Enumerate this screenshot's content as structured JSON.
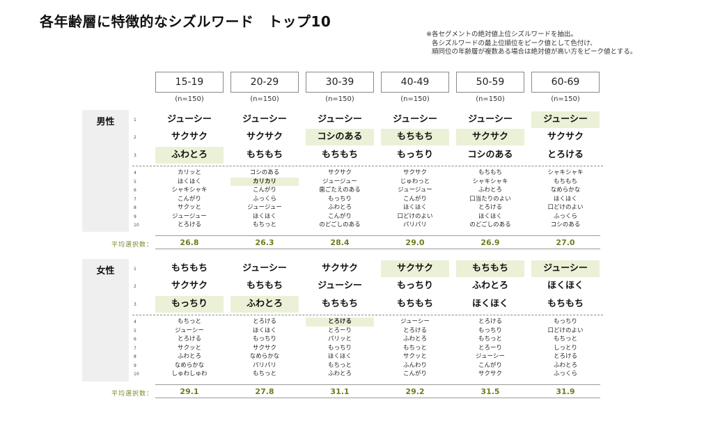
{
  "title": "各年齢層に特徴的なシズルワード　トップ10",
  "note": [
    "※各セグメントの絶対値上位シズルワードを抽出。",
    "各シズルワードの最上位順位をピーク値として色付け、",
    "順同位の年齢層が複数ある場合は絶対値が高い方をピーク値とする。"
  ],
  "age_groups": [
    {
      "label": "15-19",
      "n": "(n=150)"
    },
    {
      "label": "20-29",
      "n": "(n=150)"
    },
    {
      "label": "30-39",
      "n": "(n=150)"
    },
    {
      "label": "40-49",
      "n": "(n=150)"
    },
    {
      "label": "50-59",
      "n": "(n=150)"
    },
    {
      "label": "60-69",
      "n": "(n=150)"
    }
  ],
  "ranks": [
    "1",
    "2",
    "3",
    "4",
    "5",
    "6",
    "7",
    "8",
    "9",
    "10"
  ],
  "avg_label": "平均選択数：",
  "sections": [
    {
      "label": "男性",
      "columns": [
        {
          "words": [
            "ジューシー",
            "サクサク",
            "ふわとろ",
            "カリッと",
            "ほくほく",
            "シャキシャキ",
            "こんがり",
            "サクッと",
            "ジュージュー",
            "とろける"
          ],
          "highlight": [
            2
          ],
          "avg": "26.8"
        },
        {
          "words": [
            "ジューシー",
            "サクサク",
            "もちもち",
            "コシのある",
            "カリカリ",
            "こんがり",
            "ふっくら",
            "ジュージュー",
            "ほくほく",
            "もちっと"
          ],
          "highlight": [
            4
          ],
          "avg": "26.3"
        },
        {
          "words": [
            "ジューシー",
            "コシのある",
            "もちもち",
            "サクサク",
            "ジュージュー",
            "歯ごたえのある",
            "もっちり",
            "ふわとろ",
            "こんがり",
            "のどごしのある"
          ],
          "highlight": [
            1
          ],
          "avg": "28.4"
        },
        {
          "words": [
            "ジューシー",
            "もちもち",
            "もっちり",
            "サクサク",
            "じゅわっと",
            "ジュージュー",
            "こんがり",
            "ほくほく",
            "口どけのよい",
            "パリパリ"
          ],
          "highlight": [
            1
          ],
          "avg": "29.0"
        },
        {
          "words": [
            "ジューシー",
            "サクサク",
            "コシのある",
            "もちもち",
            "シャキシャキ",
            "ふわとろ",
            "口当たりのよい",
            "とろける",
            "ほくほく",
            "のどごしのある"
          ],
          "highlight": [
            1
          ],
          "avg": "26.9"
        },
        {
          "words": [
            "ジューシー",
            "サクサク",
            "とろける",
            "シャキシャキ",
            "もちもち",
            "なめらかな",
            "ほくほく",
            "口どけのよい",
            "ふっくら",
            "コシのある"
          ],
          "highlight": [
            0
          ],
          "avg": "27.0"
        }
      ]
    },
    {
      "label": "女性",
      "columns": [
        {
          "words": [
            "もちもち",
            "サクサク",
            "もっちり",
            "もちっと",
            "ジューシー",
            "とろける",
            "サクッと",
            "ふわとろ",
            "なめらかな",
            "しゅわしゅわ"
          ],
          "highlight": [
            2
          ],
          "avg": "29.1"
        },
        {
          "words": [
            "ジューシー",
            "もちもち",
            "ふわとろ",
            "とろける",
            "ほくほく",
            "もっちり",
            "サクサク",
            "なめらかな",
            "パリパリ",
            "もちっと"
          ],
          "highlight": [
            2
          ],
          "avg": "27.8"
        },
        {
          "words": [
            "サクサク",
            "ジューシー",
            "もちもち",
            "とろける",
            "とろーり",
            "パリッと",
            "もっちり",
            "ほくほく",
            "もちっと",
            "ふわとろ"
          ],
          "highlight": [
            3
          ],
          "avg": "31.1"
        },
        {
          "words": [
            "サクサク",
            "もっちり",
            "もちもち",
            "ジューシー",
            "とろける",
            "ふわとろ",
            "もちっと",
            "サクッと",
            "ふんわり",
            "こんがり"
          ],
          "highlight": [
            0
          ],
          "avg": "29.2"
        },
        {
          "words": [
            "もちもち",
            "ふわとろ",
            "ほくほく",
            "とろける",
            "もっちり",
            "もちっと",
            "とろーり",
            "ジューシー",
            "こんがり",
            "サクサク"
          ],
          "highlight": [
            0
          ],
          "avg": "31.5"
        },
        {
          "words": [
            "ジューシー",
            "ほくほく",
            "もちもち",
            "もっちり",
            "口どけのよい",
            "もちっと",
            "しっとり",
            "とろける",
            "ふわとろ",
            "ふっくら"
          ],
          "highlight": [
            0
          ],
          "avg": "31.9"
        }
      ]
    }
  ]
}
